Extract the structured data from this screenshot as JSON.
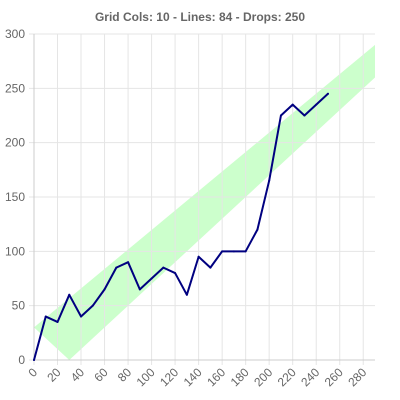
{
  "chart_data": {
    "type": "line",
    "title": "Grid Cols: 10 - Lines: 84 - Drops: 250",
    "xlabel": "",
    "ylabel": "",
    "xlim": [
      0,
      290
    ],
    "ylim": [
      0,
      300
    ],
    "x_ticks": [
      "0",
      "20",
      "40",
      "60",
      "80",
      "100",
      "120",
      "140",
      "160",
      "180",
      "200",
      "220",
      "240",
      "260",
      "280"
    ],
    "y_ticks": [
      "0",
      "50",
      "100",
      "150",
      "200",
      "250",
      "300"
    ],
    "grid": true,
    "colors": {
      "line": "#000080",
      "band": "#ccffcc",
      "grid": "#e5e5e5",
      "axis": "#cccccc",
      "text": "#666666"
    },
    "band": {
      "upper": [
        [
          0,
          30
        ],
        [
          290,
          290
        ]
      ],
      "lower": [
        [
          30,
          0
        ],
        [
          290,
          260
        ]
      ]
    },
    "series": [
      {
        "x": [
          0,
          10,
          20,
          30,
          40,
          50,
          60,
          70,
          80,
          90,
          100,
          110,
          120,
          130,
          140,
          150,
          160,
          170,
          180,
          190,
          200,
          210,
          220,
          230,
          240,
          250
        ],
        "y": [
          0,
          40,
          35,
          60,
          40,
          50,
          65,
          85,
          90,
          65,
          75,
          85,
          80,
          60,
          95,
          85,
          100,
          100,
          100,
          120,
          165,
          225,
          235,
          225,
          235,
          245
        ]
      }
    ]
  }
}
